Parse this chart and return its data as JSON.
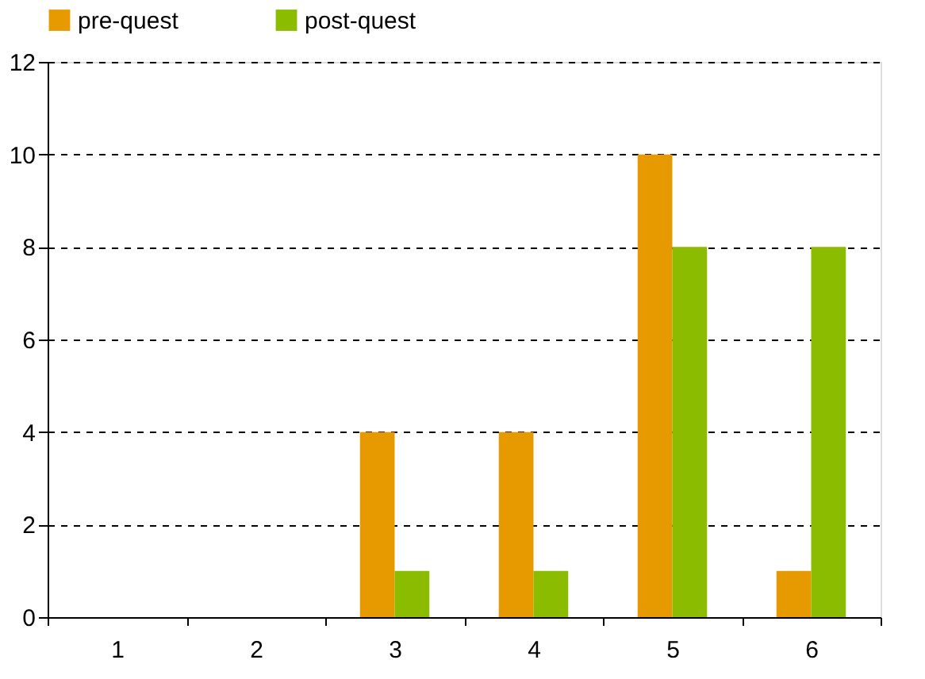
{
  "chart_data": {
    "type": "bar",
    "categories": [
      "1",
      "2",
      "3",
      "4",
      "5",
      "6"
    ],
    "series": [
      {
        "name": "pre-quest",
        "color": "#e69a00",
        "values": [
          0,
          0,
          4,
          4,
          10,
          1
        ]
      },
      {
        "name": "post-quest",
        "color": "#8cbc00",
        "values": [
          0,
          0,
          1,
          1,
          8,
          8
        ]
      }
    ],
    "ylim": [
      0,
      12
    ],
    "yticks": [
      0,
      2,
      4,
      6,
      8,
      10,
      12
    ],
    "grid": "y",
    "legend": "top"
  }
}
